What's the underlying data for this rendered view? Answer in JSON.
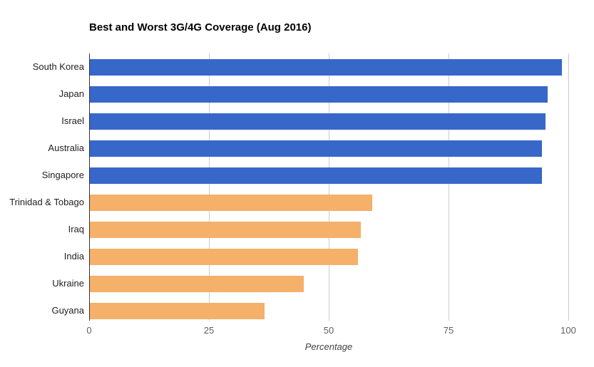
{
  "page": {
    "background": "#ffffff"
  },
  "title": "Best and Worst 3G/4G Coverage (Aug 2016)",
  "colors": {
    "best_bar": "#3767c9",
    "worst_bar": "#f5b06a",
    "gridline": "#cccccc",
    "axis_line": "#333333",
    "title_text": "#000000",
    "category_label": "#222222",
    "tick_label": "#5f5f5f",
    "axis_label": "#444444"
  },
  "chart_data": {
    "type": "bar",
    "orientation": "horizontal",
    "title": "Best and Worst 3G/4G Coverage (Aug 2016)",
    "xlabel": "Percentage",
    "ylabel": "",
    "xlim": [
      0,
      100
    ],
    "xticks": [
      0,
      25,
      50,
      75,
      100
    ],
    "grid": true,
    "legend": false,
    "categories": [
      "South Korea",
      "Japan",
      "Israel",
      "Australia",
      "Singapore",
      "Trinidad & Tobago",
      "Iraq",
      "India",
      "Ukraine",
      "Guyana"
    ],
    "values": [
      98.5,
      95.6,
      95.1,
      94.4,
      94.3,
      58.9,
      56.5,
      56.0,
      44.7,
      36.4
    ],
    "groups": [
      "best",
      "best",
      "best",
      "best",
      "best",
      "worst",
      "worst",
      "worst",
      "worst",
      "worst"
    ],
    "group_colors": {
      "best": "#3767c9",
      "worst": "#f5b06a"
    }
  }
}
